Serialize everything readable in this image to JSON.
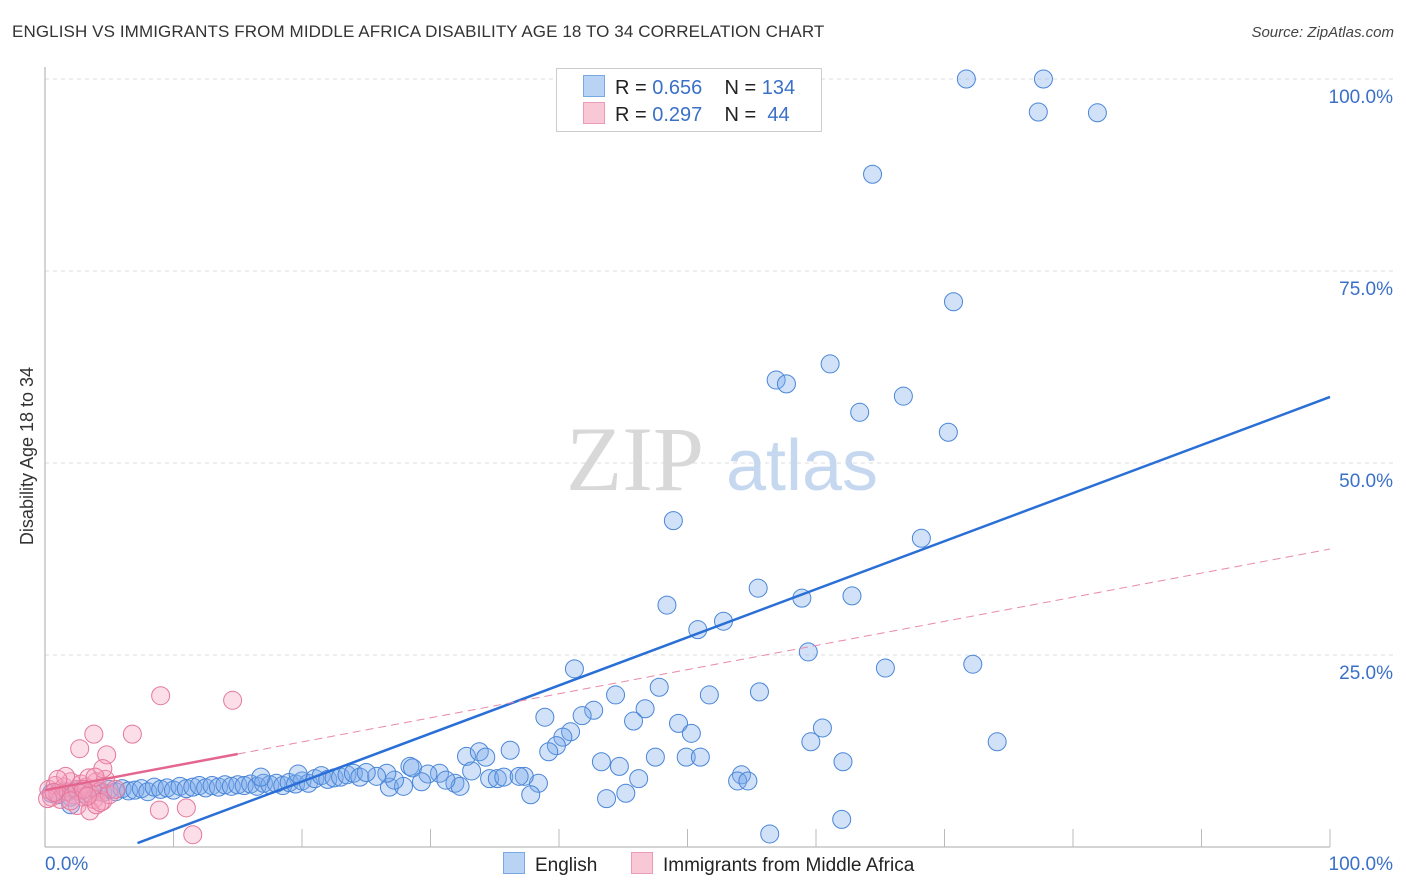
{
  "title": "ENGLISH VS IMMIGRANTS FROM MIDDLE AFRICA DISABILITY AGE 18 TO 34 CORRELATION CHART",
  "source": "Source: ZipAtlas.com",
  "watermark": {
    "zip": "ZIP",
    "atlas": "atlas"
  },
  "colors": {
    "english": "#4a86d8",
    "english_fill": "#a9c8f0",
    "immigrants": "#e4789c",
    "immigrants_fill": "#f7c4d4",
    "axis_label": "#3a70c8"
  },
  "legend": {
    "r_label": "R =",
    "n_label": "N =",
    "english": {
      "r": "0.656",
      "n": "134"
    },
    "immigrants": {
      "r": "0.297",
      "n": "44"
    }
  },
  "chart_data": {
    "type": "scatter",
    "title": "ENGLISH VS IMMIGRANTS FROM MIDDLE AFRICA DISABILITY AGE 18 TO 34 CORRELATION CHART",
    "xlabel": "",
    "ylabel": "Disability Age 18 to 34",
    "xlim": [
      0,
      100
    ],
    "ylim": [
      0,
      100
    ],
    "x_tick_labels": [
      "0.0%",
      "100.0%"
    ],
    "y_tick_labels": [
      "100.0%",
      "75.0%",
      "50.0%",
      "25.0%"
    ],
    "y_ticks": [
      100,
      75,
      50,
      25
    ],
    "legend_position": "bottom",
    "series": [
      {
        "name": "English",
        "trend": {
          "slope": 0.626,
          "intercept": -4.0,
          "x_range": [
            7.2,
            100
          ]
        },
        "points": [
          [
            71.7,
            100
          ],
          [
            77.7,
            100
          ],
          [
            77.3,
            95.7
          ],
          [
            81.9,
            95.6
          ],
          [
            64.4,
            87.6
          ],
          [
            70.7,
            71
          ],
          [
            61.1,
            62.9
          ],
          [
            56.9,
            60.8
          ],
          [
            57.7,
            60.3
          ],
          [
            66.8,
            58.7
          ],
          [
            63.4,
            56.6
          ],
          [
            70.3,
            54
          ],
          [
            48.9,
            42.5
          ],
          [
            68.2,
            40.2
          ],
          [
            55.5,
            33.7
          ],
          [
            48.4,
            31.5
          ],
          [
            58.9,
            32.4
          ],
          [
            62.8,
            32.7
          ],
          [
            52.8,
            29.4
          ],
          [
            50.8,
            28.3
          ],
          [
            59.4,
            25.4
          ],
          [
            41.2,
            23.2
          ],
          [
            65.4,
            23.3
          ],
          [
            72.2,
            23.8
          ],
          [
            47.8,
            20.8
          ],
          [
            44.4,
            19.8
          ],
          [
            51.7,
            19.8
          ],
          [
            55.6,
            20.2
          ],
          [
            46.7,
            18
          ],
          [
            42.7,
            17.8
          ],
          [
            38.9,
            16.9
          ],
          [
            41.8,
            17.1
          ],
          [
            45.8,
            16.4
          ],
          [
            49.3,
            16.1
          ],
          [
            60.5,
            15.5
          ],
          [
            40.9,
            15
          ],
          [
            40.3,
            14.3
          ],
          [
            50.3,
            14.8
          ],
          [
            39.8,
            13.2
          ],
          [
            59.6,
            13.7
          ],
          [
            74.1,
            13.7
          ],
          [
            39.2,
            12.4
          ],
          [
            36.2,
            12.6
          ],
          [
            32.8,
            11.8
          ],
          [
            33.8,
            12.4
          ],
          [
            34.3,
            11.7
          ],
          [
            47.5,
            11.7
          ],
          [
            49.9,
            11.7
          ],
          [
            51,
            11.7
          ],
          [
            43.3,
            11.1
          ],
          [
            62.1,
            11.1
          ],
          [
            44.7,
            10.5
          ],
          [
            28.4,
            10.5
          ],
          [
            28.6,
            10.3
          ],
          [
            54.2,
            9.4
          ],
          [
            53.9,
            8.6
          ],
          [
            54.7,
            8.6
          ],
          [
            46.2,
            8.9
          ],
          [
            38.4,
            8.3
          ],
          [
            37.3,
            9.2
          ],
          [
            34.6,
            8.9
          ],
          [
            35.2,
            8.9
          ],
          [
            35.7,
            9.1
          ],
          [
            36.9,
            9.2
          ],
          [
            33.2,
            9.9
          ],
          [
            30.7,
            9.6
          ],
          [
            29.8,
            9.5
          ],
          [
            31.9,
            8.3
          ],
          [
            32.3,
            7.9
          ],
          [
            31.2,
            8.7
          ],
          [
            29.3,
            8.5
          ],
          [
            26.8,
            7.8
          ],
          [
            27.9,
            7.9
          ],
          [
            27.2,
            8.7
          ],
          [
            37.8,
            6.8
          ],
          [
            43.7,
            6.3
          ],
          [
            45.2,
            7
          ],
          [
            56.4,
            1.7
          ],
          [
            62,
            3.6
          ],
          [
            26.6,
            9.6
          ],
          [
            25.8,
            9.2
          ],
          [
            0.5,
            7.0
          ],
          [
            1,
            6.8
          ],
          [
            1.5,
            7.2
          ],
          [
            2,
            6.5
          ],
          [
            2.5,
            7.3
          ],
          [
            3,
            7.0
          ],
          [
            3.5,
            6.9
          ],
          [
            4,
            7.4
          ],
          [
            4.5,
            7.1
          ],
          [
            5,
            7.5
          ],
          [
            5.5,
            7.2
          ],
          [
            6,
            7.6
          ],
          [
            6.5,
            7.3
          ],
          [
            7,
            7.4
          ],
          [
            7.5,
            7.6
          ],
          [
            8,
            7.2
          ],
          [
            8.5,
            7.8
          ],
          [
            9,
            7.5
          ],
          [
            9.5,
            7.7
          ],
          [
            10,
            7.4
          ],
          [
            10.5,
            7.9
          ],
          [
            11,
            7.6
          ],
          [
            11.5,
            7.8
          ],
          [
            12,
            8.0
          ],
          [
            12.5,
            7.7
          ],
          [
            13,
            8.0
          ],
          [
            13.5,
            7.8
          ],
          [
            14,
            8.1
          ],
          [
            14.5,
            7.9
          ],
          [
            15,
            8.1
          ],
          [
            15.5,
            8.0
          ],
          [
            16,
            8.2
          ],
          [
            16.5,
            7.9
          ],
          [
            17,
            8.3
          ],
          [
            17.5,
            8.1
          ],
          [
            18,
            8.3
          ],
          [
            18.5,
            8.0
          ],
          [
            19,
            8.4
          ],
          [
            19.5,
            8.2
          ],
          [
            20,
            8.6
          ],
          [
            20.5,
            8.3
          ],
          [
            21,
            8.9
          ],
          [
            21.5,
            9.3
          ],
          [
            22,
            8.8
          ],
          [
            22.5,
            9.0
          ],
          [
            23,
            9.1
          ],
          [
            23.5,
            9.4
          ],
          [
            24,
            9.6
          ],
          [
            24.5,
            9.1
          ],
          [
            25,
            9.7
          ],
          [
            19.7,
            9.5
          ],
          [
            16.8,
            9.1
          ],
          [
            2,
            5.5
          ]
        ]
      },
      {
        "name": "Immigrants from Middle Africa",
        "trend": {
          "slope": 0.314,
          "intercept": 7.4,
          "solid_range": [
            0,
            15
          ],
          "dashed_range": [
            15,
            100
          ]
        },
        "points": [
          [
            0.3,
            7.5
          ],
          [
            0.5,
            6.5
          ],
          [
            0.8,
            8
          ],
          [
            1,
            7
          ],
          [
            1.2,
            6.2
          ],
          [
            1.5,
            7.8
          ],
          [
            1.8,
            7.2
          ],
          [
            2,
            8.5
          ],
          [
            2.2,
            6.8
          ],
          [
            2.5,
            7.5
          ],
          [
            2.8,
            8.2
          ],
          [
            3,
            6.5
          ],
          [
            3.2,
            7.8
          ],
          [
            3.5,
            7
          ],
          [
            3.8,
            6.2
          ],
          [
            4,
            8.5
          ],
          [
            4.2,
            7.2
          ],
          [
            4.5,
            6
          ],
          [
            1.6,
            9.2
          ],
          [
            3.4,
            9
          ],
          [
            4.7,
            8.8
          ],
          [
            2.5,
            5.4
          ],
          [
            3.5,
            4.7
          ],
          [
            4,
            5.5
          ],
          [
            0.2,
            6.3
          ],
          [
            2.7,
            12.8
          ],
          [
            3.8,
            14.7
          ],
          [
            6.8,
            14.7
          ],
          [
            4.8,
            12
          ],
          [
            4.5,
            10.2
          ],
          [
            3.9,
            9.1
          ],
          [
            9.0,
            19.7
          ],
          [
            14.6,
            19.1
          ],
          [
            8.9,
            4.8
          ],
          [
            11,
            5.1
          ],
          [
            11.5,
            1.6
          ],
          [
            5,
            6.8
          ],
          [
            5.5,
            7.5
          ],
          [
            1,
            8.8
          ],
          [
            2,
            6
          ],
          [
            3,
            7.5
          ],
          [
            4.3,
            5.8
          ],
          [
            0.7,
            7.1
          ],
          [
            3.3,
            6.6
          ]
        ]
      }
    ]
  }
}
